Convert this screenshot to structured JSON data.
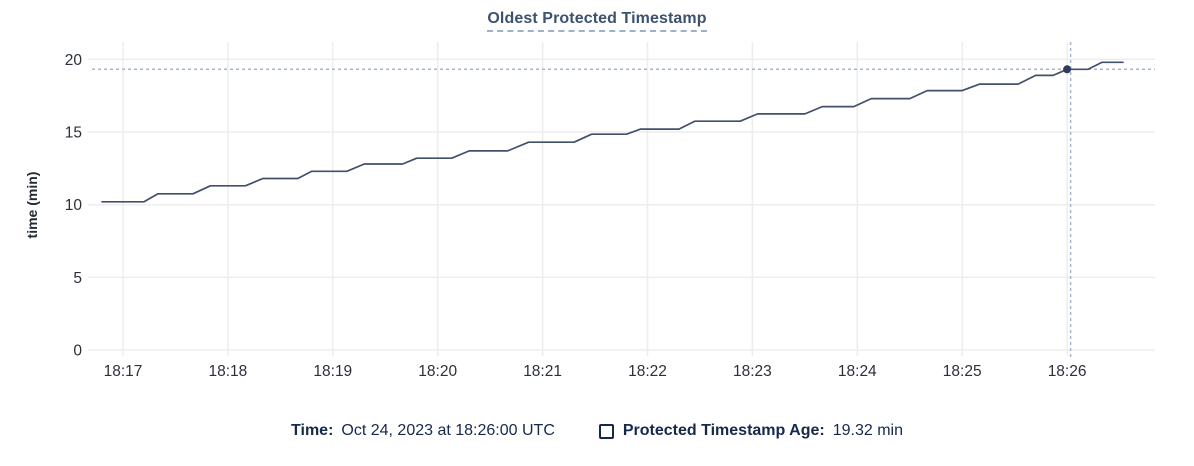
{
  "chart_data": {
    "type": "line",
    "title": "Oldest Protected Timestamp",
    "xlabel": "",
    "ylabel": "time (min)",
    "ylim": [
      0,
      20
    ],
    "yticks": [
      0,
      5,
      10,
      15,
      20
    ],
    "xticks": [
      "18:17",
      "18:18",
      "18:19",
      "18:20",
      "18:21",
      "18:22",
      "18:23",
      "18:24",
      "18:25",
      "18:26"
    ],
    "grid": true,
    "legend_position": "bottom",
    "series": [
      {
        "name": "Protected Timestamp Age",
        "unit": "min",
        "points": [
          [
            "18:16:48",
            10.2
          ],
          [
            "18:17:12",
            10.2
          ],
          [
            "18:17:20",
            10.75
          ],
          [
            "18:17:40",
            10.75
          ],
          [
            "18:17:50",
            11.3
          ],
          [
            "18:18:10",
            11.3
          ],
          [
            "18:18:20",
            11.8
          ],
          [
            "18:18:40",
            11.8
          ],
          [
            "18:18:48",
            12.3
          ],
          [
            "18:19:08",
            12.3
          ],
          [
            "18:19:18",
            12.8
          ],
          [
            "18:19:40",
            12.8
          ],
          [
            "18:19:48",
            13.2
          ],
          [
            "18:20:08",
            13.2
          ],
          [
            "18:20:18",
            13.7
          ],
          [
            "18:20:40",
            13.7
          ],
          [
            "18:20:52",
            14.3
          ],
          [
            "18:21:18",
            14.3
          ],
          [
            "18:21:28",
            14.85
          ],
          [
            "18:21:48",
            14.85
          ],
          [
            "18:21:56",
            15.2
          ],
          [
            "18:22:18",
            15.2
          ],
          [
            "18:22:27",
            15.75
          ],
          [
            "18:22:53",
            15.75
          ],
          [
            "18:23:03",
            16.25
          ],
          [
            "18:23:30",
            16.25
          ],
          [
            "18:23:40",
            16.75
          ],
          [
            "18:23:58",
            16.75
          ],
          [
            "18:24:08",
            17.3
          ],
          [
            "18:24:30",
            17.3
          ],
          [
            "18:24:40",
            17.85
          ],
          [
            "18:25:00",
            17.85
          ],
          [
            "18:25:10",
            18.3
          ],
          [
            "18:25:32",
            18.3
          ],
          [
            "18:25:42",
            18.9
          ],
          [
            "18:25:52",
            18.9
          ],
          [
            "18:26:00",
            19.32
          ],
          [
            "18:26:12",
            19.32
          ],
          [
            "18:26:20",
            19.8
          ],
          [
            "18:26:32",
            19.8
          ]
        ]
      }
    ],
    "crosshair": {
      "point_time": "18:26:00",
      "line_time": "18:26:02",
      "value": 19.32
    }
  },
  "legend": {
    "time_label": "Time:",
    "time_value": "Oct 24, 2023 at 18:26:00 UTC",
    "series_label": "Protected Timestamp Age:",
    "series_value": "19.32 min",
    "checkbox_checked": false
  },
  "colors": {
    "title": "#3c526e",
    "title_underline": "#9db2c9",
    "navy_text": "#16294b",
    "tick_label": "#2b3039",
    "grid": "#ededed",
    "line": "#41506b",
    "dot": "#2c3c59",
    "crosshair": "#a2b7cb",
    "background": "#ffffff"
  }
}
